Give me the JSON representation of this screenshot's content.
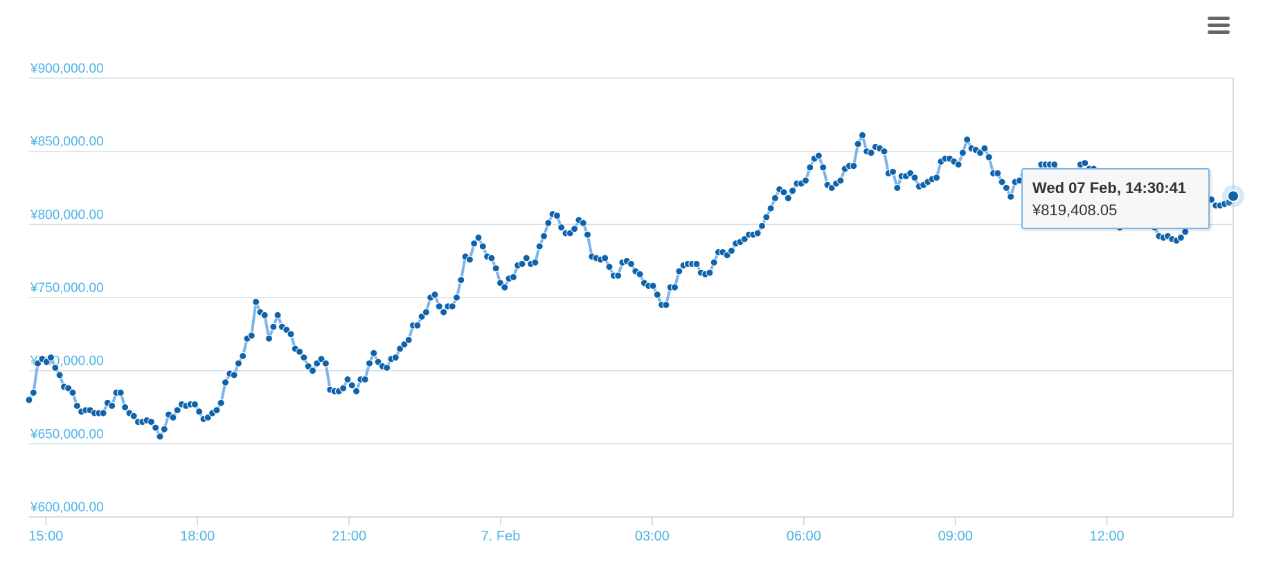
{
  "menu": {
    "icon": "hamburger-menu-icon"
  },
  "tooltip": {
    "date": "Wed 07 Feb, 14:30:41",
    "value": "¥819,408.05"
  },
  "colors": {
    "line": "#7cb5ec",
    "marker": "#0f63ab",
    "axis_text": "#4db3e6",
    "grid": "#d6dde4",
    "axis_line": "#c0d0e0"
  },
  "chart_data": {
    "type": "line",
    "title": "",
    "xlabel": "",
    "ylabel": "",
    "ylim": [
      600000,
      900000
    ],
    "yticks": [
      {
        "value": 600000,
        "label": "¥600,000.00"
      },
      {
        "value": 650000,
        "label": "¥650,000.00"
      },
      {
        "value": 700000,
        "label": "¥700,000.00"
      },
      {
        "value": 750000,
        "label": "¥750,000.00"
      },
      {
        "value": 800000,
        "label": "¥800,000.00"
      },
      {
        "value": 850000,
        "label": "¥850,000.00"
      },
      {
        "value": 900000,
        "label": "¥900,000.00"
      }
    ],
    "xrange": [
      "6 Feb 14:40",
      "7 Feb 14:30"
    ],
    "xticks": [
      {
        "time": "6 Feb 15:00",
        "label": "15:00"
      },
      {
        "time": "6 Feb 18:00",
        "label": "18:00"
      },
      {
        "time": "6 Feb 21:00",
        "label": "21:00"
      },
      {
        "time": "7 Feb 00:00",
        "label": "7. Feb"
      },
      {
        "time": "7 Feb 03:00",
        "label": "03:00"
      },
      {
        "time": "7 Feb 06:00",
        "label": "06:00"
      },
      {
        "time": "7 Feb 09:00",
        "label": "09:00"
      },
      {
        "time": "7 Feb 12:00",
        "label": "12:00"
      }
    ],
    "grid": true,
    "legend": "none",
    "series": [
      {
        "start": "6 Feb 14:40",
        "end": "7 Feb 14:30",
        "values": [
          680000,
          685000,
          705000,
          708000,
          706000,
          709000,
          702000,
          697000,
          689000,
          688000,
          685000,
          676000,
          672000,
          673000,
          673000,
          671000,
          671000,
          671000,
          678000,
          676000,
          685000,
          685000,
          675000,
          671000,
          669000,
          665000,
          665000,
          666000,
          665000,
          661000,
          655000,
          660000,
          670000,
          668000,
          673000,
          677000,
          676000,
          677000,
          677000,
          672000,
          667000,
          668000,
          671000,
          673000,
          678000,
          692000,
          698000,
          697000,
          705000,
          710000,
          722000,
          724000,
          747000,
          740000,
          738000,
          722000,
          730000,
          738000,
          730000,
          728000,
          725000,
          715000,
          713000,
          709000,
          703000,
          700000,
          705000,
          708000,
          705000,
          687000,
          686000,
          686000,
          688000,
          694000,
          690000,
          686000,
          694000,
          694000,
          705000,
          712000,
          706000,
          703000,
          702000,
          708000,
          709000,
          715000,
          718000,
          721000,
          731000,
          731000,
          737000,
          740000,
          750000,
          752000,
          744000,
          740000,
          744000,
          744000,
          750000,
          762000,
          778000,
          776000,
          787000,
          791000,
          785000,
          778000,
          777000,
          770000,
          760000,
          757000,
          763000,
          764000,
          772000,
          773000,
          777000,
          773000,
          774000,
          785000,
          792000,
          801000,
          807000,
          806000,
          798000,
          794000,
          794000,
          797000,
          803000,
          801000,
          793000,
          778000,
          777000,
          776000,
          777000,
          771000,
          765000,
          765000,
          774000,
          775000,
          773000,
          768000,
          766000,
          760000,
          758000,
          758000,
          752000,
          745000,
          745000,
          757000,
          757000,
          768000,
          772000,
          773000,
          773000,
          773000,
          767000,
          766000,
          767000,
          774000,
          781000,
          781000,
          779000,
          782000,
          787000,
          788000,
          790000,
          793000,
          793000,
          794000,
          799000,
          805000,
          811000,
          818000,
          824000,
          822000,
          818000,
          823000,
          828000,
          828000,
          830000,
          839000,
          845000,
          847000,
          839000,
          827000,
          825000,
          828000,
          830000,
          838000,
          840000,
          840000,
          855000,
          861000,
          850000,
          849000,
          853000,
          852000,
          850000,
          835000,
          836000,
          825000,
          833000,
          833000,
          835000,
          832000,
          826000,
          827000,
          829000,
          831000,
          832000,
          843000,
          845000,
          845000,
          843000,
          841000,
          849000,
          858000,
          852000,
          851000,
          849000,
          852000,
          846000,
          835000,
          835000,
          829000,
          825000,
          819000,
          829000,
          830000,
          834000,
          830000,
          829000,
          831000,
          841000,
          841000,
          841000,
          841000,
          836000,
          836000,
          834000,
          834000,
          835000,
          841000,
          842000,
          838000,
          838000,
          834000,
          819000,
          812000,
          804000,
          803000,
          798000,
          799000,
          801000,
          800000,
          802000,
          806000,
          802000,
          801000,
          798000,
          792000,
          791000,
          792000,
          790000,
          789000,
          791000,
          795000,
          805000,
          805000,
          812000,
          815000,
          818000,
          817000,
          813000,
          813000,
          814000,
          815000,
          819408.05
        ]
      }
    ]
  }
}
